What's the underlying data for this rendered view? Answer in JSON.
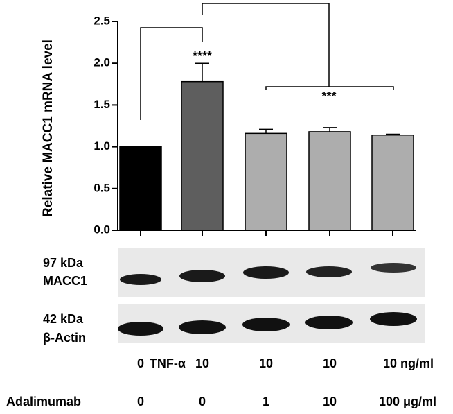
{
  "chart_data": {
    "type": "bar",
    "ylabel": "Relative MACC1 mRNA level",
    "values": [
      1.0,
      1.78,
      1.16,
      1.18,
      1.14
    ],
    "errors": [
      0,
      0.22,
      0.05,
      0.05,
      0.01
    ],
    "colors": [
      "#000000",
      "#5e5e5e",
      "#adadad",
      "#adadad",
      "#adadad"
    ],
    "ylim": [
      0,
      2.5
    ],
    "yticks": [
      {
        "value": 0,
        "label": "0.0"
      },
      0.5,
      {
        "value": 1,
        "label": "1.0"
      },
      1.5,
      {
        "value": 2,
        "label": "2.0"
      },
      2.5
    ],
    "annotations": [
      "****",
      "***"
    ],
    "blot_labels": [
      "97 kDa",
      "MACC1",
      "42 kDa",
      "β-Actin"
    ],
    "conditions": [
      {
        "name": "TNF-α",
        "labels": [
          "0",
          "10",
          "10",
          "10",
          "10 ng/ml"
        ]
      },
      {
        "name": "Adalimumab",
        "labels": [
          "0",
          "0",
          "1",
          "10",
          "100 μg/ml"
        ]
      }
    ]
  }
}
